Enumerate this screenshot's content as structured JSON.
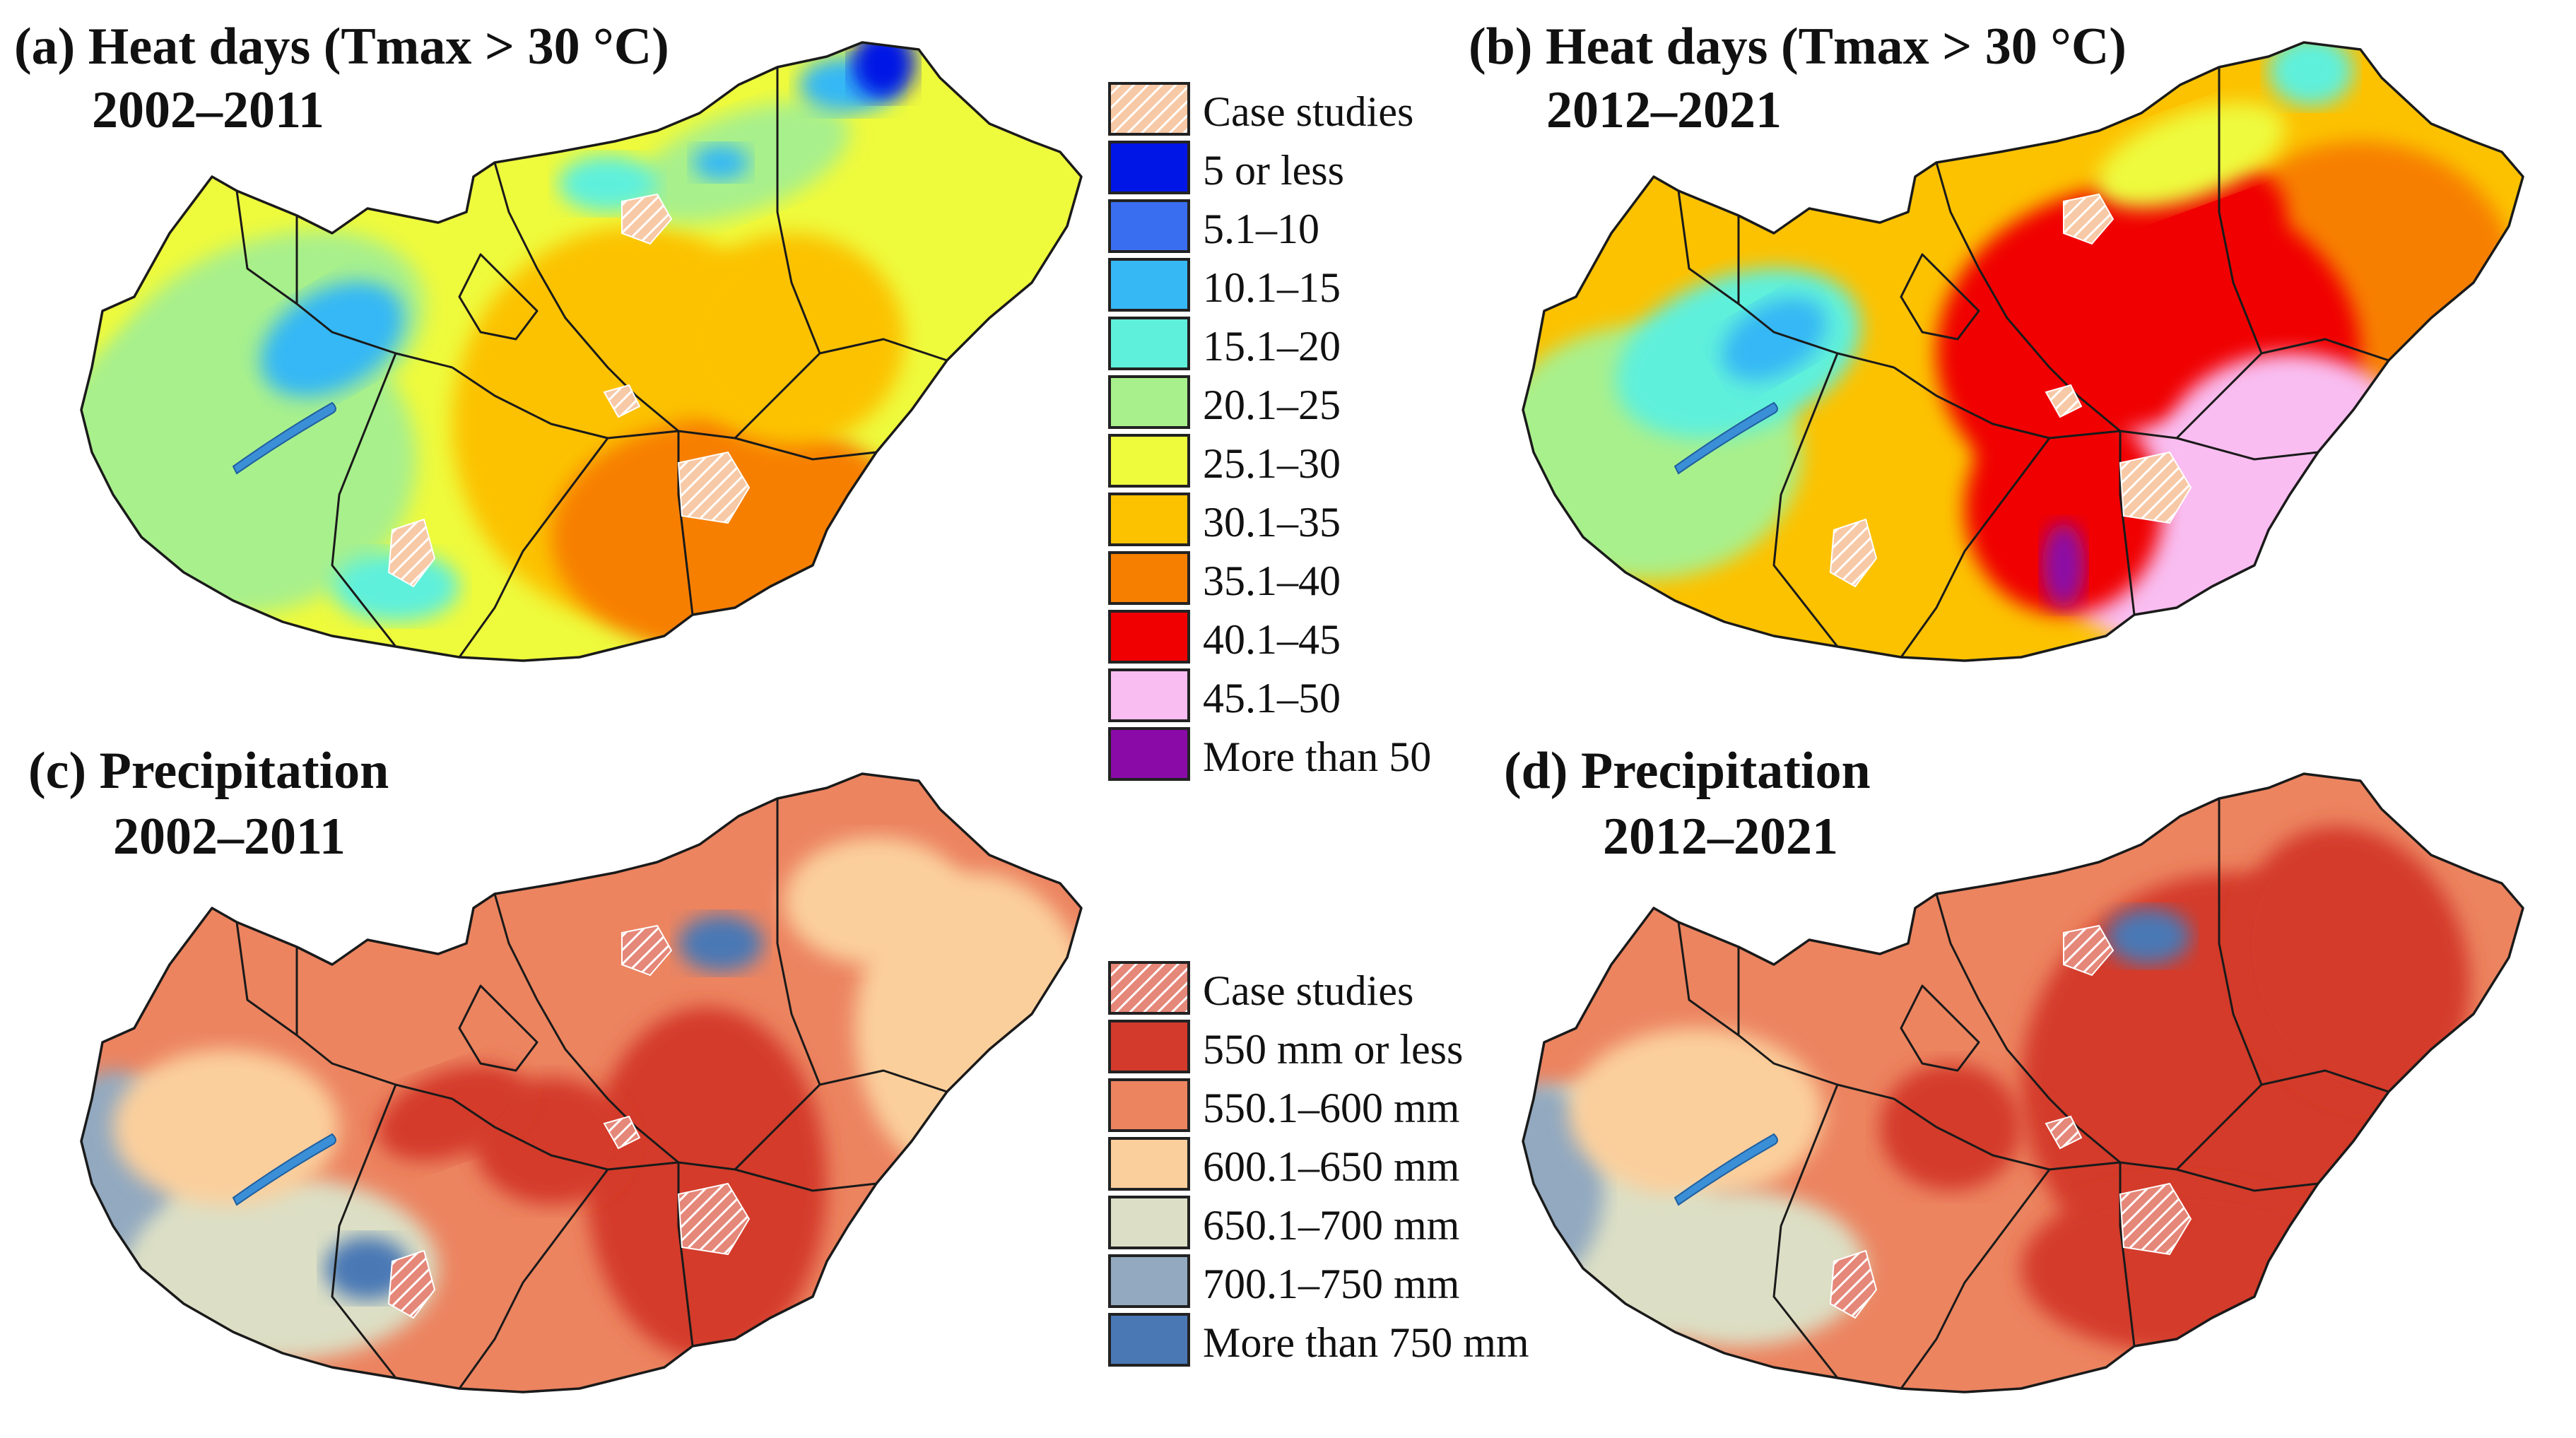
{
  "panels": {
    "a": {
      "title_line1": "(a) Heat days (Tmax > 30 °C)",
      "title_line2": "2002–2011"
    },
    "b": {
      "title_line1": "(b) Heat days (Tmax > 30 °C)",
      "title_line2": "2012–2021"
    },
    "c": {
      "title_line1": "(c) Precipitation",
      "title_line2": "2002–2011"
    },
    "d": {
      "title_line1": "(d) Precipitation",
      "title_line2": "2012–2021"
    }
  },
  "legend_heat": {
    "case_studies": "Case studies",
    "case_color": "#f2a36b",
    "items": [
      {
        "label": "5 or less",
        "color": "#0016e6"
      },
      {
        "label": "5.1–10",
        "color": "#3a6ef0"
      },
      {
        "label": "10.1–15",
        "color": "#36b8f5"
      },
      {
        "label": "15.1–20",
        "color": "#5ff0dc"
      },
      {
        "label": "20.1–25",
        "color": "#a8f08c"
      },
      {
        "label": "25.1–30",
        "color": "#eefa3c"
      },
      {
        "label": "30.1–35",
        "color": "#fcc200"
      },
      {
        "label": "35.1–40",
        "color": "#f77f00"
      },
      {
        "label": "40.1–45",
        "color": "#f00000"
      },
      {
        "label": "45.1–50",
        "color": "#f9bdf1"
      },
      {
        "label": "More than 50",
        "color": "#8a0aa8"
      }
    ]
  },
  "legend_precip": {
    "case_studies": "Case studies",
    "case_color": "#e06a5a",
    "items": [
      {
        "label": "550 mm or less",
        "color": "#d43a2c"
      },
      {
        "label": "550.1–600 mm",
        "color": "#ec8460"
      },
      {
        "label": "600.1–650 mm",
        "color": "#fbcf9c"
      },
      {
        "label": "650.1–700 mm",
        "color": "#dcdfc5"
      },
      {
        "label": "700.1–750 mm",
        "color": "#92a9c0"
      },
      {
        "label": "More than 750 mm",
        "color": "#4a78b5"
      }
    ]
  }
}
